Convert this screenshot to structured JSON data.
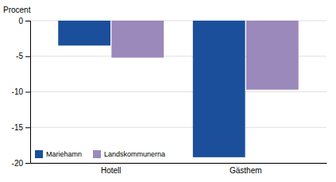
{
  "chart_data": {
    "type": "bar",
    "ylabel": "Procent",
    "categories": [
      "Hotell",
      "Gästhem"
    ],
    "series": [
      {
        "name": "Mariehamn",
        "color": "#1B4F9B",
        "values": [
          -3.5,
          -19.2
        ]
      },
      {
        "name": "Landskommunerna",
        "color": "#9B89BC",
        "values": [
          -5.2,
          -9.7
        ]
      }
    ],
    "ylim": [
      -20,
      0
    ],
    "yticks": [
      0,
      -5,
      -10,
      -15,
      -20
    ],
    "grid": true,
    "legend": "lower left"
  }
}
